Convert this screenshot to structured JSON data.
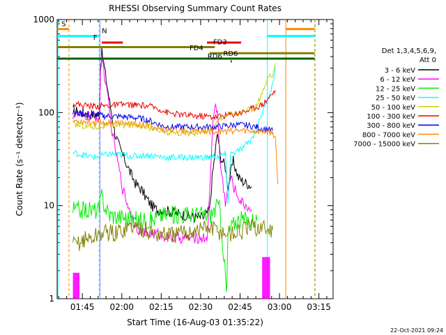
{
  "chart_data": {
    "type": "line",
    "title": "RHESSI Observing Summary Count Rates",
    "xlabel": "Start Time (16-Aug-03 01:35:22)",
    "ylabel": "Count Rate (s⁻¹ detector⁻¹)",
    "yscale": "log",
    "ylim": [
      1,
      1000
    ],
    "xlim_minutes": [
      0,
      105
    ],
    "x_start": "01:35:22",
    "x_ticks": [
      {
        "label": "01:45",
        "t": 9.6
      },
      {
        "label": "02:00",
        "t": 24.6
      },
      {
        "label": "02:15",
        "t": 39.6
      },
      {
        "label": "02:30",
        "t": 54.6
      },
      {
        "label": "02:45",
        "t": 69.6
      },
      {
        "label": "03:00",
        "t": 84.6
      },
      {
        "label": "03:15",
        "t": 99.6
      }
    ],
    "y_ticks": [
      {
        "label": "1",
        "v": 1
      },
      {
        "label": "10",
        "v": 10
      },
      {
        "label": "100",
        "v": 100
      },
      {
        "label": "1000",
        "v": 1000
      }
    ],
    "legend_title": [
      "Det 1,3,4,5,6,9,",
      "Att 0"
    ],
    "series": [
      {
        "name": "3 - 6 keV",
        "color": "#000000",
        "points": [
          [
            6,
            105
          ],
          [
            10,
            100
          ],
          [
            14,
            95
          ],
          [
            16,
            95
          ],
          [
            16.5,
            300
          ],
          [
            17,
            450
          ],
          [
            18,
            300
          ],
          [
            20,
            130
          ],
          [
            22,
            60
          ],
          [
            24,
            40
          ],
          [
            26,
            30
          ],
          [
            28,
            22
          ],
          [
            30,
            17
          ],
          [
            32,
            15
          ],
          [
            34,
            12
          ],
          [
            36,
            10
          ],
          [
            38,
            9
          ],
          [
            40,
            9
          ],
          [
            44,
            8.5
          ],
          [
            48,
            8
          ],
          [
            52,
            7.5
          ],
          [
            56,
            7.5
          ],
          [
            58,
            9
          ],
          [
            59,
            20
          ],
          [
            60,
            35
          ],
          [
            61,
            60
          ],
          [
            62,
            35
          ],
          [
            64,
            26
          ],
          [
            65,
            16
          ],
          [
            67,
            30
          ],
          [
            69,
            20
          ],
          [
            71,
            18
          ],
          [
            73,
            17
          ],
          [
            74,
            16
          ]
        ]
      },
      {
        "name": "6 - 12 keV",
        "color": "#ff00ff",
        "points": [
          [
            6,
            95
          ],
          [
            14,
            90
          ],
          [
            16,
            90
          ],
          [
            16.5,
            250
          ],
          [
            17,
            420
          ],
          [
            18,
            250
          ],
          [
            20,
            100
          ],
          [
            21,
            60
          ],
          [
            23,
            30
          ],
          [
            25,
            15
          ],
          [
            27,
            10
          ],
          [
            29,
            7
          ],
          [
            31,
            5.5
          ],
          [
            34,
            5
          ],
          [
            38,
            5
          ],
          [
            44,
            4.5
          ],
          [
            50,
            4.5
          ],
          [
            55,
            4.5
          ],
          [
            57,
            4.5
          ],
          [
            58,
            12
          ],
          [
            59,
            60
          ],
          [
            60,
            130
          ],
          [
            61,
            100
          ],
          [
            62,
            30
          ],
          [
            63,
            18
          ],
          [
            64,
            11
          ],
          [
            66,
            20
          ],
          [
            68,
            14
          ],
          [
            70,
            11
          ],
          [
            72,
            10
          ],
          [
            74,
            9
          ]
        ]
      },
      {
        "name": "12 - 25 keV",
        "color": "#00ee00",
        "points": [
          [
            6,
            9
          ],
          [
            14,
            9
          ],
          [
            16,
            9
          ],
          [
            17,
            13
          ],
          [
            18,
            10
          ],
          [
            20,
            8
          ],
          [
            26,
            7.5
          ],
          [
            30,
            7
          ],
          [
            36,
            7
          ],
          [
            40,
            8
          ],
          [
            46,
            8
          ],
          [
            52,
            8
          ],
          [
            56,
            8
          ],
          [
            58,
            8
          ],
          [
            60,
            9
          ],
          [
            61,
            10
          ],
          [
            62,
            9
          ],
          [
            64,
            1.8
          ],
          [
            64.5,
            1.1
          ],
          [
            65,
            5
          ],
          [
            68,
            7
          ],
          [
            74,
            7
          ],
          [
            76,
            7
          ]
        ]
      },
      {
        "name": "25 - 50 keV",
        "color": "#00ffff",
        "points": [
          [
            6,
            37
          ],
          [
            10,
            35
          ],
          [
            14,
            33
          ],
          [
            16,
            34
          ],
          [
            20,
            36
          ],
          [
            24,
            35
          ],
          [
            30,
            34
          ],
          [
            34,
            35
          ],
          [
            38,
            34
          ],
          [
            42,
            33
          ],
          [
            46,
            33
          ],
          [
            50,
            33
          ],
          [
            54,
            33
          ],
          [
            58,
            33
          ],
          [
            62,
            34
          ],
          [
            64,
            36
          ],
          [
            65,
            11
          ],
          [
            66,
            36
          ],
          [
            70,
            40
          ],
          [
            74,
            52
          ],
          [
            76,
            70
          ],
          [
            78,
            100
          ],
          [
            80,
            140
          ],
          [
            82,
            200
          ],
          [
            83,
            310
          ]
        ]
      },
      {
        "name": "50 - 100 keV",
        "color": "#cccc00",
        "points": [
          [
            6,
            75
          ],
          [
            10,
            72
          ],
          [
            14,
            70
          ],
          [
            18,
            72
          ],
          [
            22,
            74
          ],
          [
            26,
            73
          ],
          [
            30,
            74
          ],
          [
            34,
            72
          ],
          [
            36,
            68
          ],
          [
            40,
            62
          ],
          [
            44,
            60
          ],
          [
            48,
            60
          ],
          [
            52,
            61
          ],
          [
            56,
            62
          ],
          [
            58,
            65
          ],
          [
            60,
            72
          ],
          [
            62,
            88
          ],
          [
            66,
            98
          ],
          [
            70,
            100
          ],
          [
            74,
            108
          ],
          [
            76,
            120
          ],
          [
            78,
            160
          ],
          [
            80,
            220
          ],
          [
            82,
            260
          ],
          [
            83,
            340
          ]
        ]
      },
      {
        "name": "100 - 300 keV",
        "color": "#ee0000",
        "points": [
          [
            6,
            125
          ],
          [
            10,
            120
          ],
          [
            14,
            118
          ],
          [
            18,
            118
          ],
          [
            22,
            120
          ],
          [
            26,
            122
          ],
          [
            30,
            120
          ],
          [
            34,
            118
          ],
          [
            38,
            112
          ],
          [
            42,
            100
          ],
          [
            46,
            96
          ],
          [
            50,
            93
          ],
          [
            54,
            92
          ],
          [
            58,
            91
          ],
          [
            60,
            90
          ],
          [
            62,
            92
          ],
          [
            66,
            95
          ],
          [
            70,
            100
          ],
          [
            74,
            110
          ],
          [
            78,
            122
          ],
          [
            80,
            140
          ],
          [
            82,
            160
          ],
          [
            83,
            175
          ]
        ]
      },
      {
        "name": "300 - 800 keV",
        "color": "#0000ee",
        "points": [
          [
            6,
            100
          ],
          [
            10,
            97
          ],
          [
            14,
            95
          ],
          [
            18,
            92
          ],
          [
            22,
            91
          ],
          [
            26,
            90
          ],
          [
            30,
            88
          ],
          [
            34,
            84
          ],
          [
            36,
            80
          ],
          [
            40,
            72
          ],
          [
            44,
            70
          ],
          [
            48,
            70
          ],
          [
            52,
            70
          ],
          [
            56,
            70
          ],
          [
            60,
            70
          ],
          [
            64,
            72
          ],
          [
            68,
            74
          ],
          [
            72,
            73
          ],
          [
            76,
            70
          ],
          [
            80,
            66
          ],
          [
            82,
            64
          ]
        ]
      },
      {
        "name": "800 - 7000 keV",
        "color": "#ff8800",
        "points": [
          [
            6,
            82
          ],
          [
            10,
            80
          ],
          [
            14,
            79
          ],
          [
            18,
            78
          ],
          [
            22,
            77
          ],
          [
            26,
            77
          ],
          [
            30,
            75
          ],
          [
            34,
            73
          ],
          [
            36,
            70
          ],
          [
            40,
            66
          ],
          [
            44,
            65
          ],
          [
            48,
            64
          ],
          [
            52,
            64
          ],
          [
            56,
            63
          ],
          [
            60,
            63
          ],
          [
            64,
            63
          ],
          [
            68,
            64
          ],
          [
            72,
            64
          ],
          [
            76,
            63
          ],
          [
            80,
            62
          ],
          [
            82,
            60
          ],
          [
            83,
            55
          ],
          [
            84,
            17
          ]
        ]
      },
      {
        "name": "7000 - 15000 keV",
        "color": "#808000",
        "points": [
          [
            6,
            3.7
          ],
          [
            10,
            4.3
          ],
          [
            14,
            4.5
          ],
          [
            16,
            5.0
          ],
          [
            20,
            5.2
          ],
          [
            22,
            4.9
          ],
          [
            24,
            5.4
          ],
          [
            28,
            6.0
          ],
          [
            32,
            5.8
          ],
          [
            36,
            5.0
          ],
          [
            40,
            4.9
          ],
          [
            44,
            4.8
          ],
          [
            48,
            5.0
          ],
          [
            52,
            5.4
          ],
          [
            56,
            5.8
          ],
          [
            60,
            5.6
          ],
          [
            62,
            5.2
          ],
          [
            66,
            5.0
          ],
          [
            70,
            5.2
          ],
          [
            72,
            5.6
          ],
          [
            74,
            5.8
          ],
          [
            78,
            5.8
          ],
          [
            80,
            5.6
          ],
          [
            82,
            5.5
          ]
        ]
      }
    ],
    "background_bars": [
      {
        "name": "lowband-magenta",
        "color": "#ff00ff",
        "t0": 6,
        "t1": 8.5,
        "level": 1.9
      },
      {
        "name": "highlevel-magenta",
        "color": "#ff00ff",
        "t0": 78,
        "t1": 81,
        "level": 2.8
      }
    ],
    "flags": [
      {
        "label": "S",
        "color": "#ff8800",
        "y_level": 790,
        "t0": 0,
        "t1": 4.5,
        "row": 1,
        "label_at": 2.5
      },
      {
        "label": "S",
        "color": "#ff8800",
        "y_level": 790,
        "t0": 87,
        "t1": 98,
        "row": 1,
        "label_at": null
      },
      {
        "label": "N",
        "color": "#00ffff",
        "y_level": 665,
        "t0": 0,
        "t1": 16,
        "row": 2,
        "label_at": 18
      },
      {
        "label": "N",
        "color": "#00ffff",
        "y_level": 665,
        "t0": 80,
        "t1": 98,
        "row": 2,
        "label_at": null
      },
      {
        "label": "F",
        "color": "#ee0000",
        "y_level": 565,
        "t0": 17,
        "t1": 25,
        "row": 3,
        "label_at": 14.5
      },
      {
        "label": "F",
        "color": "#ee0000",
        "y_level": 565,
        "t0": 57,
        "t1": 70,
        "row": 3,
        "label_at": null
      },
      {
        "label": "FD3",
        "color": "#808000",
        "y_level": 505,
        "t0": 0,
        "t1": 60,
        "row": 4,
        "label_at": 62
      },
      {
        "label": "FD4",
        "color": "#808000",
        "y_level": 435,
        "t0": 58,
        "t1": 98,
        "row": 5,
        "label_at": 53
      },
      {
        "label": "RD6",
        "color": "#006400",
        "y_level": 380,
        "t0": 0,
        "t1": 98,
        "row": 6,
        "label_at": 66
      },
      {
        "label": "RD6",
        "color": "#006400",
        "y_level": 355,
        "t0": 66,
        "t1": 66.5,
        "row": 7,
        "label_at": 60
      }
    ],
    "vlines": [
      {
        "t": 4.5,
        "color": "#ff8800",
        "style": "dashed"
      },
      {
        "t": 16,
        "color": "#00ffff",
        "style": "dashed"
      },
      {
        "t": 16.3,
        "color": "#8080ff",
        "style": "solid"
      },
      {
        "t": 80,
        "color": "#00ffff",
        "style": "solid"
      },
      {
        "t": 87,
        "color": "#ff8800",
        "style": "solid"
      },
      {
        "t": 98,
        "color": "#ff8800",
        "style": "dashed"
      },
      {
        "t": 98.2,
        "color": "#00ffff",
        "style": "dashed"
      },
      {
        "t": 0.3,
        "color": "#00ffff",
        "style": "solid"
      }
    ],
    "legend_position": "right",
    "footer_date": "22-Oct-2021 09:24"
  }
}
